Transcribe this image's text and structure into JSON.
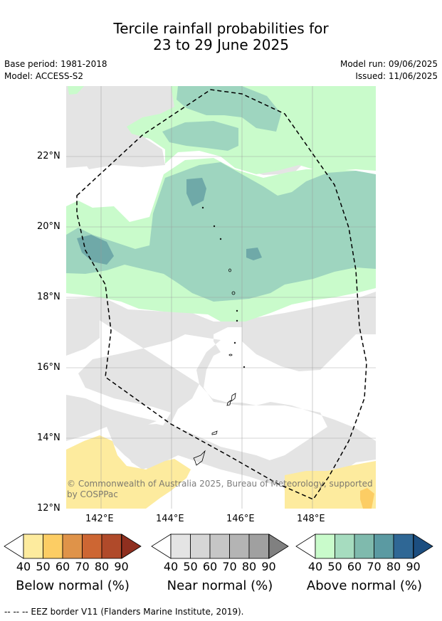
{
  "header": {
    "title_line1": "Tercile rainfall probabilities for",
    "title_line2": "23 to 29 June 2025",
    "base_period": "Base period: 1981-2018",
    "model": "Model: ACCESS-S2",
    "model_run": "Model run: 09/06/2025",
    "issued": "Issued: 11/06/2025"
  },
  "map": {
    "lat_labels": [
      "22°N",
      "20°N",
      "18°N",
      "16°N",
      "14°N",
      "12°N"
    ],
    "lon_labels": [
      "142°E",
      "144°E",
      "146°E",
      "148°E"
    ],
    "copyright_line1": "© Commonwealth of Australia 2025, Bureau of Meteorology, supported",
    "copyright_line2": "by COSPPac",
    "colors": {
      "ocean": "#ffffff",
      "near_normal_40": "#e4e4e4",
      "below_normal_40": "#fdeb9e",
      "below_normal_50": "#fccd64",
      "above_normal_40": "#c9fbcb",
      "above_normal_50": "#9ed5bf",
      "above_normal_60": "#6fa9a8",
      "eez_border": "#000000"
    }
  },
  "colorbars": [
    {
      "title": "Below normal (%)",
      "ticks": [
        "40",
        "50",
        "60",
        "70",
        "80",
        "90"
      ],
      "colors": [
        "#fdeb9e",
        "#fccd64",
        "#df9349",
        "#cd6633",
        "#b04a2a",
        "#8f2f1f"
      ]
    },
    {
      "title": "Near normal (%)",
      "ticks": [
        "40",
        "50",
        "60",
        "70",
        "80",
        "90"
      ],
      "colors": [
        "#e4e4e4",
        "#d6d6d6",
        "#c6c6c6",
        "#b4b4b4",
        "#a0a0a0",
        "#808080"
      ]
    },
    {
      "title": "Above normal (%)",
      "ticks": [
        "40",
        "50",
        "60",
        "70",
        "80",
        "90"
      ],
      "colors": [
        "#c9fbcb",
        "#a6dcbf",
        "#7fbaad",
        "#5b9aa2",
        "#2f6795",
        "#1c4e80"
      ]
    }
  ],
  "footer": {
    "eez_note": "--  --  -- EEZ border V11 (Flanders Marine Institute, 2019)."
  }
}
